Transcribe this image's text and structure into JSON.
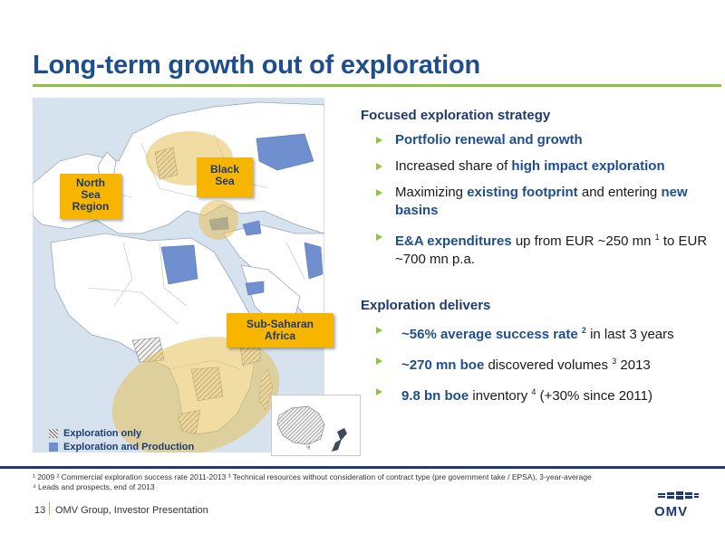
{
  "title": "Long-term growth out of exploration",
  "map": {
    "callouts": {
      "north_sea": [
        "North",
        "Sea",
        "Region"
      ],
      "black_sea": [
        "Black",
        "Sea"
      ],
      "africa": [
        "Sub-Saharan",
        "Africa"
      ]
    },
    "legend": {
      "exploration_only": "Exploration only",
      "exploration_production": "Exploration and Production"
    }
  },
  "colors": {
    "brand_blue": "#1f4e8c",
    "accent_green": "#8cc63f",
    "callout_yellow": "#f7b500",
    "highlight_area": "#e6c15a"
  },
  "section1": {
    "heading": "Focused exploration strategy",
    "b1": {
      "hl": "Portfolio renewal and growth"
    },
    "b2": {
      "pre": "Increased share of ",
      "hl": "high impact exploration"
    },
    "b3": {
      "pre": "Maximizing ",
      "hl1": "existing footprint",
      "mid": " and entering ",
      "hl2": "new basins"
    },
    "b4": {
      "hl": "E&A expenditures",
      "post1": " up from EUR ~250 mn ",
      "sup": "1",
      "post2": " to EUR ~700 mn p.a."
    }
  },
  "section2": {
    "heading": "Exploration delivers",
    "b1": {
      "hl": "~56% average success rate ",
      "sup": "2",
      "post": " in last 3 years"
    },
    "b2": {
      "hl": "~270 mn boe",
      "post": " discovered volumes ",
      "sup": "3",
      "post2": " 2013"
    },
    "b3": {
      "hl": "9.8 bn boe",
      "post": " inventory ",
      "sup": "4",
      "post2": " (+30% since 2011)"
    }
  },
  "footnotes": {
    "line1": "¹ 2009   ² Commercial exploration success rate 2011-2013   ³ Technical resources without consideration of contract type (pre government take / EPSA), 3-year-average",
    "line2": "⁴ Leads and prospects, end of 2013"
  },
  "footer": {
    "page": "13",
    "text": "OMV Group, Investor Presentation",
    "logo": "OMV"
  }
}
